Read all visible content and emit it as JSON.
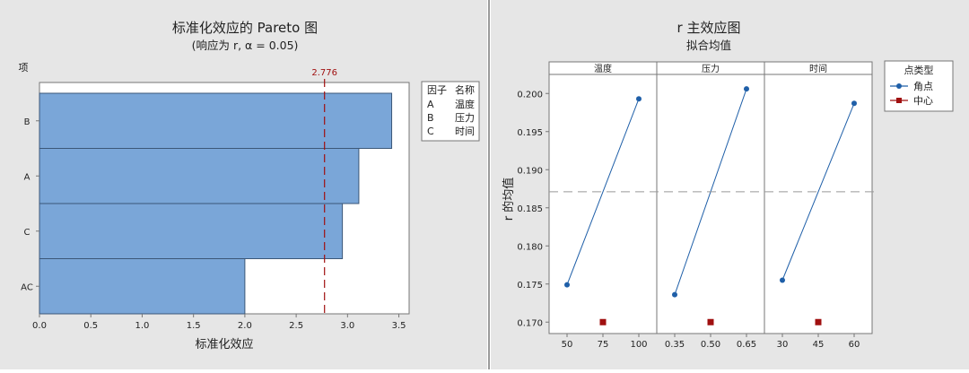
{
  "chart_data": [
    {
      "type": "bar",
      "orientation": "horizontal",
      "title": "标准化效应的 Pareto 图",
      "subtitle": "(响应为 r, α = 0.05)",
      "xlabel": "标准化效应",
      "ylabel": "项",
      "categories": [
        "B",
        "A",
        "C",
        "AC"
      ],
      "values": [
        3.43,
        3.11,
        2.95,
        2.0
      ],
      "reference_line": {
        "value": 2.776,
        "label": "2.776",
        "color": "#a01010"
      },
      "xlim": [
        0,
        3.6
      ],
      "xticks": [
        "0.0",
        "0.5",
        "1.0",
        "1.5",
        "2.0",
        "2.5",
        "3.0",
        "3.5"
      ],
      "bar_color": "#7aa6d8",
      "legend": {
        "placement": "right",
        "headers": [
          "因子",
          "名称"
        ],
        "rows": [
          [
            "A",
            "温度"
          ],
          [
            "B",
            "压力"
          ],
          [
            "C",
            "时间"
          ]
        ]
      }
    },
    {
      "type": "line",
      "title": "r 主效应图",
      "subtitle": "拟合均值",
      "ylabel": "r 的均值",
      "ylim": [
        0.1685,
        0.2025
      ],
      "yticks": [
        "0.200",
        "0.195",
        "0.190",
        "0.185",
        "0.180",
        "0.175",
        "0.170"
      ],
      "reference_line": {
        "value": 0.1871
      },
      "panels": [
        {
          "name": "温度",
          "ticks": [
            "50",
            "75",
            "100"
          ],
          "corner": [
            0.1749,
            0.1993
          ],
          "center": 0.17
        },
        {
          "name": "压力",
          "ticks": [
            "0.35",
            "0.50",
            "0.65"
          ],
          "corner": [
            0.1736,
            0.2006
          ],
          "center": 0.17
        },
        {
          "name": "时间",
          "ticks": [
            "30",
            "45",
            "60"
          ],
          "corner": [
            0.1755,
            0.1987
          ],
          "center": 0.17
        }
      ],
      "legend": {
        "title": "点类型",
        "placement": "right",
        "entries": [
          {
            "name": "角点",
            "color": "#1f5fa8",
            "marker": "circle"
          },
          {
            "name": "中心",
            "color": "#a01010",
            "marker": "square"
          }
        ]
      }
    }
  ]
}
